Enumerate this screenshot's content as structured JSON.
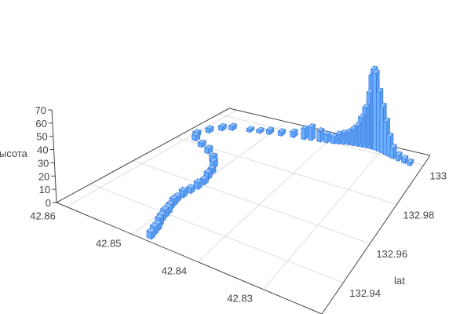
{
  "chart_data": {
    "type": "bar3d",
    "title": "",
    "x_axis": {
      "label": "",
      "ticks": [
        "42.86",
        "42.85",
        "42.84",
        "42.83"
      ],
      "tick_values": [
        42.86,
        42.85,
        42.84,
        42.83
      ],
      "range": [
        42.8615,
        42.8211
      ]
    },
    "y_axis": {
      "label": "lat",
      "ticks": [
        "132.94",
        "132.96",
        "132.98",
        "133"
      ],
      "tick_values": [
        132.94,
        132.96,
        132.98,
        133.0
      ],
      "range": [
        132.924,
        133.005
      ]
    },
    "z_axis": {
      "label": "высота",
      "ticks": [
        "0",
        "10",
        "20",
        "30",
        "40",
        "50",
        "60",
        "70"
      ],
      "tick_values": [
        0,
        10,
        20,
        30,
        40,
        50,
        60,
        70
      ],
      "range": [
        0,
        70
      ]
    },
    "grid": true,
    "colors": {
      "bar_fill": "#6aaeff",
      "bar_edge": "#3a78dc",
      "grid": "#dddddd",
      "axis": "#444444"
    },
    "points": [
      [
        42.8478,
        132.9264,
        5
      ],
      [
        42.848,
        132.9289,
        6
      ],
      [
        42.8482,
        132.9313,
        5
      ],
      [
        42.8486,
        132.9337,
        6
      ],
      [
        42.849,
        132.9362,
        5
      ],
      [
        42.8492,
        132.9386,
        6
      ],
      [
        42.8494,
        132.941,
        5
      ],
      [
        42.8498,
        132.9434,
        4
      ],
      [
        42.85,
        132.9459,
        5
      ],
      [
        42.8502,
        132.9483,
        4
      ],
      [
        42.8502,
        132.9515,
        5
      ],
      [
        42.85,
        132.9548,
        4
      ],
      [
        42.8498,
        132.958,
        5
      ],
      [
        42.8498,
        132.9613,
        4
      ],
      [
        42.8502,
        132.9645,
        5
      ],
      [
        42.8506,
        132.9677,
        4
      ],
      [
        42.8514,
        132.971,
        5
      ],
      [
        42.8526,
        132.9742,
        4
      ],
      [
        42.8546,
        132.9775,
        4
      ],
      [
        42.8567,
        132.9799,
        3
      ],
      [
        42.8587,
        132.9823,
        4
      ],
      [
        42.8595,
        132.9848,
        3
      ],
      [
        42.8587,
        132.9888,
        3
      ],
      [
        42.8575,
        132.992,
        3
      ],
      [
        42.8562,
        132.9937,
        3
      ],
      [
        42.8534,
        132.9953,
        2
      ],
      [
        42.8518,
        132.9961,
        2
      ],
      [
        42.8502,
        132.9969,
        3
      ],
      [
        42.8482,
        132.9977,
        3
      ],
      [
        42.8461,
        132.9985,
        4
      ],
      [
        42.8441,
        132.9989,
        8
      ],
      [
        42.8429,
        132.9993,
        10
      ],
      [
        42.8413,
        132.9997,
        8
      ],
      [
        42.8401,
        133.0001,
        6
      ],
      [
        42.8389,
        133.0005,
        5
      ],
      [
        42.8381,
        133.001,
        7
      ],
      [
        42.8373,
        133.0014,
        8
      ],
      [
        42.8365,
        133.0018,
        9
      ],
      [
        42.8356,
        133.0019,
        12
      ],
      [
        42.8348,
        133.0022,
        15
      ],
      [
        42.834,
        133.0023,
        22
      ],
      [
        42.8332,
        133.0024,
        30
      ],
      [
        42.8324,
        133.0025,
        42
      ],
      [
        42.832,
        133.0026,
        55
      ],
      [
        42.8316,
        133.0026,
        60
      ],
      [
        42.8312,
        133.0024,
        58
      ],
      [
        42.8304,
        133.0022,
        45
      ],
      [
        42.8296,
        133.0018,
        35
      ],
      [
        42.8288,
        133.0014,
        25
      ],
      [
        42.828,
        133.001,
        15
      ],
      [
        42.8272,
        133.0005,
        8
      ],
      [
        42.826,
        133.0001,
        4
      ],
      [
        42.8247,
        132.9997,
        3
      ],
      [
        42.8235,
        132.9993,
        2
      ]
    ]
  }
}
